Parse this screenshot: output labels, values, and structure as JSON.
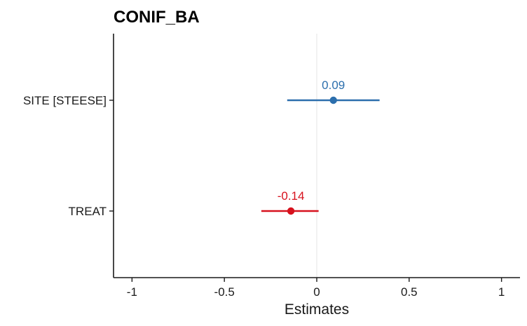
{
  "chart_data": {
    "type": "scatter",
    "title": "CONIF_BA",
    "xlabel": "Estimates",
    "ylabel": "",
    "xlim": [
      -1.1,
      1.1
    ],
    "xticks": [
      -1,
      -0.5,
      0,
      0.5,
      1
    ],
    "xtick_labels": [
      "-1",
      "-0.5",
      "0",
      "0.5",
      "1"
    ],
    "zero_line": 0,
    "terms": [
      {
        "term": "SITE [STEESE]",
        "estimate": 0.09,
        "label": "0.09",
        "conf_low": -0.16,
        "conf_high": 0.34,
        "color": "#2c6fad"
      },
      {
        "term": "TREAT",
        "estimate": -0.14,
        "label": "-0.14",
        "conf_low": -0.3,
        "conf_high": 0.01,
        "color": "#d7111d"
      }
    ],
    "grid": false,
    "legend": "none"
  }
}
